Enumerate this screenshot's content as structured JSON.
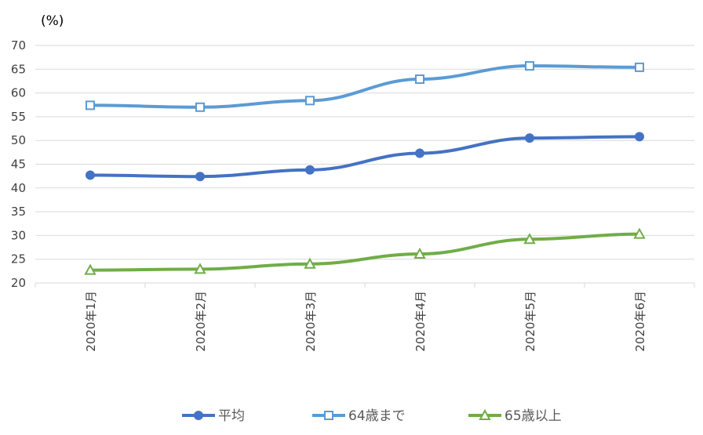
{
  "chart_data": {
    "type": "line",
    "unit_label": "(%)",
    "categories": [
      "2020年1月",
      "2020年2月",
      "2020年3月",
      "2020年4月",
      "2020年5月",
      "2020年6月"
    ],
    "ylim": [
      20,
      70
    ],
    "yticks": [
      20,
      25,
      30,
      35,
      40,
      45,
      50,
      55,
      60,
      65,
      70
    ],
    "grid": true,
    "legend_position": "bottom",
    "series": [
      {
        "name": "平均",
        "values": [
          42.7,
          42.4,
          43.8,
          47.3,
          50.5,
          50.8
        ],
        "color": "#4472c4",
        "marker": "circle"
      },
      {
        "name": "64歳まで",
        "values": [
          57.4,
          57.0,
          58.4,
          62.9,
          65.7,
          65.4
        ],
        "color": "#5b9bd5",
        "marker": "square"
      },
      {
        "name": "65歳以上",
        "values": [
          22.7,
          22.9,
          24.0,
          26.1,
          29.2,
          30.3
        ],
        "color": "#70ad47",
        "marker": "triangle"
      }
    ]
  }
}
